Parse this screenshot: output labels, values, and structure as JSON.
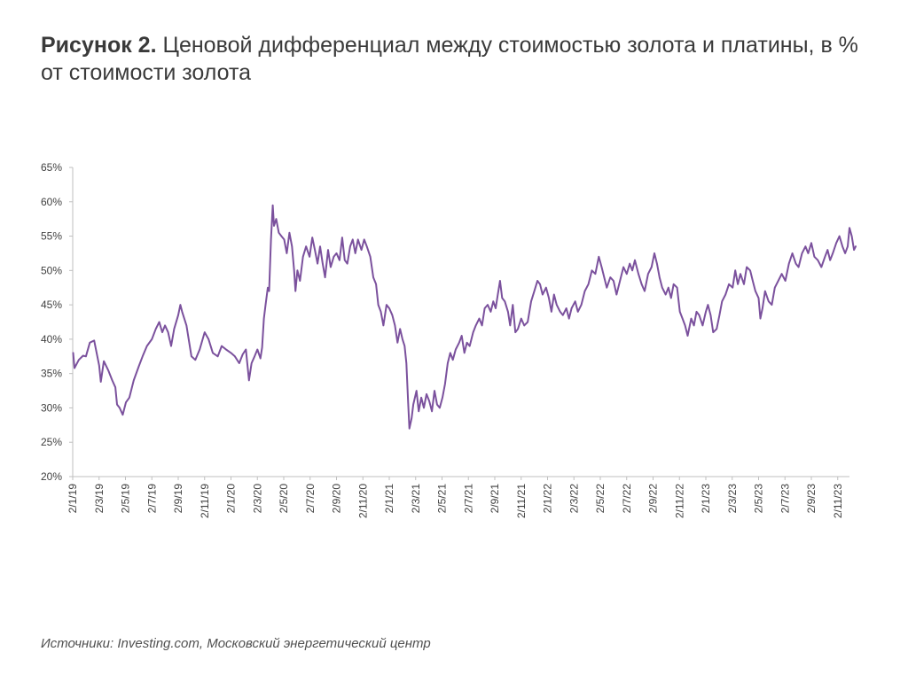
{
  "header": {
    "title_bold": "Рисунок 2.",
    "title_rest": " Ценовой дифференциал между стоимостью золота и платины, в % от стоимости золота"
  },
  "footer": {
    "source": "Источники: Investing.com, Московский энергетический центр"
  },
  "colors": {
    "line": "#7b519d",
    "axis": "#bfbfbf",
    "text": "#404040"
  },
  "chart_data": {
    "type": "line",
    "title": "Рисунок 2. Ценовой дифференциал между стоимостью золота и платины, в % от стоимости золота",
    "xlabel": "",
    "ylabel": "",
    "ylim": [
      20,
      65
    ],
    "grid": false,
    "y_ticks": [
      "20%",
      "25%",
      "30%",
      "35%",
      "40%",
      "45%",
      "50%",
      "55%",
      "60%",
      "65%"
    ],
    "x_ticks": [
      "2/1/19",
      "2/3/19",
      "2/5/19",
      "2/7/19",
      "2/9/19",
      "2/11/19",
      "2/1/20",
      "2/3/20",
      "2/5/20",
      "2/7/20",
      "2/9/20",
      "2/11/20",
      "2/1/21",
      "2/3/21",
      "2/5/21",
      "2/7/21",
      "2/9/21",
      "2/11/21",
      "2/1/22",
      "2/3/22",
      "2/5/22",
      "2/7/22",
      "2/9/22",
      "2/11/22",
      "2/1/23",
      "2/3/23",
      "2/5/23",
      "2/7/23",
      "2/9/23",
      "2/11/23"
    ],
    "series": [
      {
        "points": [
          [
            "2019-01-02",
            38.0
          ],
          [
            "2019-01-05",
            35.8
          ],
          [
            "2019-01-15",
            37.0
          ],
          [
            "2019-01-25",
            37.6
          ],
          [
            "2019-02-01",
            37.5
          ],
          [
            "2019-02-10",
            39.5
          ],
          [
            "2019-02-20",
            39.8
          ],
          [
            "2019-03-01",
            36.2
          ],
          [
            "2019-03-05",
            33.8
          ],
          [
            "2019-03-12",
            36.8
          ],
          [
            "2019-03-22",
            35.5
          ],
          [
            "2019-04-01",
            34.0
          ],
          [
            "2019-04-08",
            33.0
          ],
          [
            "2019-04-12",
            30.5
          ],
          [
            "2019-04-18",
            30.0
          ],
          [
            "2019-04-25",
            29.0
          ],
          [
            "2019-05-02",
            30.8
          ],
          [
            "2019-05-10",
            31.5
          ],
          [
            "2019-05-20",
            34.0
          ],
          [
            "2019-06-01",
            36.0
          ],
          [
            "2019-06-10",
            37.5
          ],
          [
            "2019-06-20",
            39.0
          ],
          [
            "2019-07-01",
            40.0
          ],
          [
            "2019-07-10",
            41.5
          ],
          [
            "2019-07-18",
            42.5
          ],
          [
            "2019-07-25",
            41.0
          ],
          [
            "2019-08-01",
            42.0
          ],
          [
            "2019-08-08",
            41.0
          ],
          [
            "2019-08-15",
            39.0
          ],
          [
            "2019-08-22",
            41.5
          ],
          [
            "2019-09-01",
            43.5
          ],
          [
            "2019-09-06",
            45.0
          ],
          [
            "2019-09-10",
            44.0
          ],
          [
            "2019-09-20",
            42.0
          ],
          [
            "2019-10-01",
            37.5
          ],
          [
            "2019-10-10",
            37.0
          ],
          [
            "2019-10-20",
            38.5
          ],
          [
            "2019-11-01",
            41.0
          ],
          [
            "2019-11-10",
            40.0
          ],
          [
            "2019-11-20",
            38.0
          ],
          [
            "2019-12-01",
            37.5
          ],
          [
            "2019-12-10",
            39.0
          ],
          [
            "2019-12-20",
            38.5
          ],
          [
            "2020-01-01",
            38.0
          ],
          [
            "2020-01-10",
            37.5
          ],
          [
            "2020-01-20",
            36.5
          ],
          [
            "2020-01-28",
            37.8
          ],
          [
            "2020-02-05",
            38.5
          ],
          [
            "2020-02-12",
            34.0
          ],
          [
            "2020-02-18",
            36.5
          ],
          [
            "2020-02-25",
            37.5
          ],
          [
            "2020-03-01",
            38.5
          ],
          [
            "2020-03-08",
            37.2
          ],
          [
            "2020-03-12",
            38.8
          ],
          [
            "2020-03-16",
            43.0
          ],
          [
            "2020-03-20",
            45.0
          ],
          [
            "2020-03-25",
            47.5
          ],
          [
            "2020-03-28",
            47.0
          ],
          [
            "2020-04-02",
            54.5
          ],
          [
            "2020-04-06",
            59.5
          ],
          [
            "2020-04-09",
            56.5
          ],
          [
            "2020-04-14",
            57.5
          ],
          [
            "2020-04-20",
            55.5
          ],
          [
            "2020-04-26",
            55.0
          ],
          [
            "2020-05-02",
            54.5
          ],
          [
            "2020-05-08",
            52.5
          ],
          [
            "2020-05-14",
            55.5
          ],
          [
            "2020-05-20",
            53.5
          ],
          [
            "2020-05-25",
            50.0
          ],
          [
            "2020-05-28",
            47.0
          ],
          [
            "2020-06-02",
            50.0
          ],
          [
            "2020-06-08",
            48.5
          ],
          [
            "2020-06-15",
            52.0
          ],
          [
            "2020-06-22",
            53.5
          ],
          [
            "2020-06-30",
            52.0
          ],
          [
            "2020-07-06",
            54.8
          ],
          [
            "2020-07-12",
            53.0
          ],
          [
            "2020-07-18",
            51.0
          ],
          [
            "2020-07-24",
            53.5
          ],
          [
            "2020-07-30",
            51.0
          ],
          [
            "2020-08-05",
            49.0
          ],
          [
            "2020-08-12",
            53.0
          ],
          [
            "2020-08-18",
            50.5
          ],
          [
            "2020-08-25",
            52.0
          ],
          [
            "2020-09-01",
            52.5
          ],
          [
            "2020-09-08",
            51.5
          ],
          [
            "2020-09-14",
            54.8
          ],
          [
            "2020-09-20",
            51.5
          ],
          [
            "2020-09-26",
            51.0
          ],
          [
            "2020-10-02",
            53.5
          ],
          [
            "2020-10-08",
            54.5
          ],
          [
            "2020-10-14",
            52.5
          ],
          [
            "2020-10-20",
            54.5
          ],
          [
            "2020-10-28",
            53.0
          ],
          [
            "2020-11-04",
            54.5
          ],
          [
            "2020-11-10",
            53.5
          ],
          [
            "2020-11-18",
            52.0
          ],
          [
            "2020-11-25",
            49.0
          ],
          [
            "2020-12-01",
            48.0
          ],
          [
            "2020-12-06",
            45.0
          ],
          [
            "2020-12-12",
            44.0
          ],
          [
            "2020-12-18",
            42.0
          ],
          [
            "2020-12-25",
            45.0
          ],
          [
            "2021-01-01",
            44.5
          ],
          [
            "2021-01-08",
            43.5
          ],
          [
            "2021-01-14",
            42.0
          ],
          [
            "2021-01-20",
            39.5
          ],
          [
            "2021-01-26",
            41.5
          ],
          [
            "2021-02-01",
            40.0
          ],
          [
            "2021-02-06",
            39.0
          ],
          [
            "2021-02-10",
            36.5
          ],
          [
            "2021-02-14",
            31.0
          ],
          [
            "2021-02-17",
            27.0
          ],
          [
            "2021-02-22",
            28.5
          ],
          [
            "2021-02-26",
            30.5
          ],
          [
            "2021-03-03",
            32.5
          ],
          [
            "2021-03-08",
            29.5
          ],
          [
            "2021-03-14",
            31.5
          ],
          [
            "2021-03-20",
            30.0
          ],
          [
            "2021-03-26",
            32.0
          ],
          [
            "2021-04-02",
            31.0
          ],
          [
            "2021-04-08",
            29.5
          ],
          [
            "2021-04-14",
            32.5
          ],
          [
            "2021-04-20",
            30.5
          ],
          [
            "2021-04-26",
            30.0
          ],
          [
            "2021-05-02",
            31.5
          ],
          [
            "2021-05-08",
            33.5
          ],
          [
            "2021-05-14",
            36.5
          ],
          [
            "2021-05-20",
            38.0
          ],
          [
            "2021-05-26",
            37.0
          ],
          [
            "2021-06-02",
            38.5
          ],
          [
            "2021-06-10",
            39.5
          ],
          [
            "2021-06-16",
            40.5
          ],
          [
            "2021-06-22",
            38.0
          ],
          [
            "2021-06-28",
            39.5
          ],
          [
            "2021-07-04",
            39.0
          ],
          [
            "2021-07-12",
            41.0
          ],
          [
            "2021-07-18",
            42.0
          ],
          [
            "2021-07-26",
            43.0
          ],
          [
            "2021-08-02",
            42.0
          ],
          [
            "2021-08-08",
            44.5
          ],
          [
            "2021-08-15",
            45.0
          ],
          [
            "2021-08-22",
            44.0
          ],
          [
            "2021-08-28",
            45.5
          ],
          [
            "2021-09-03",
            44.5
          ],
          [
            "2021-09-08",
            46.5
          ],
          [
            "2021-09-13",
            48.5
          ],
          [
            "2021-09-18",
            46.0
          ],
          [
            "2021-09-24",
            45.5
          ],
          [
            "2021-10-01",
            44.0
          ],
          [
            "2021-10-06",
            42.0
          ],
          [
            "2021-10-12",
            45.0
          ],
          [
            "2021-10-18",
            41.0
          ],
          [
            "2021-10-24",
            41.5
          ],
          [
            "2021-11-01",
            43.0
          ],
          [
            "2021-11-08",
            42.0
          ],
          [
            "2021-11-16",
            42.5
          ],
          [
            "2021-11-24",
            45.5
          ],
          [
            "2021-12-01",
            47.0
          ],
          [
            "2021-12-08",
            48.5
          ],
          [
            "2021-12-14",
            48.0
          ],
          [
            "2021-12-20",
            46.5
          ],
          [
            "2021-12-28",
            47.5
          ],
          [
            "2022-01-04",
            46.0
          ],
          [
            "2022-01-10",
            44.0
          ],
          [
            "2022-01-16",
            46.5
          ],
          [
            "2022-01-22",
            45.0
          ],
          [
            "2022-01-30",
            44.0
          ],
          [
            "2022-02-06",
            43.5
          ],
          [
            "2022-02-14",
            44.5
          ],
          [
            "2022-02-20",
            43.0
          ],
          [
            "2022-02-26",
            44.5
          ],
          [
            "2022-03-04",
            45.5
          ],
          [
            "2022-03-10",
            44.0
          ],
          [
            "2022-03-18",
            45.0
          ],
          [
            "2022-03-26",
            47.0
          ],
          [
            "2022-04-04",
            48.0
          ],
          [
            "2022-04-12",
            50.0
          ],
          [
            "2022-04-20",
            49.5
          ],
          [
            "2022-04-28",
            52.0
          ],
          [
            "2022-05-04",
            50.5
          ],
          [
            "2022-05-10",
            49.0
          ],
          [
            "2022-05-16",
            47.5
          ],
          [
            "2022-05-24",
            49.0
          ],
          [
            "2022-06-01",
            48.5
          ],
          [
            "2022-06-08",
            46.5
          ],
          [
            "2022-06-16",
            48.5
          ],
          [
            "2022-06-24",
            50.5
          ],
          [
            "2022-07-01",
            49.5
          ],
          [
            "2022-07-08",
            51.0
          ],
          [
            "2022-07-14",
            50.0
          ],
          [
            "2022-07-20",
            51.5
          ],
          [
            "2022-07-28",
            49.5
          ],
          [
            "2022-08-05",
            48.0
          ],
          [
            "2022-08-12",
            47.0
          ],
          [
            "2022-08-20",
            49.5
          ],
          [
            "2022-08-28",
            50.5
          ],
          [
            "2022-09-04",
            52.5
          ],
          [
            "2022-09-10",
            51.0
          ],
          [
            "2022-09-16",
            49.0
          ],
          [
            "2022-09-22",
            47.5
          ],
          [
            "2022-09-30",
            46.5
          ],
          [
            "2022-10-06",
            47.5
          ],
          [
            "2022-10-12",
            46.0
          ],
          [
            "2022-10-18",
            48.0
          ],
          [
            "2022-10-26",
            47.5
          ],
          [
            "2022-11-02",
            44.0
          ],
          [
            "2022-11-08",
            43.0
          ],
          [
            "2022-11-14",
            42.0
          ],
          [
            "2022-11-20",
            40.5
          ],
          [
            "2022-11-28",
            43.0
          ],
          [
            "2022-12-04",
            42.0
          ],
          [
            "2022-12-10",
            44.0
          ],
          [
            "2022-12-16",
            43.5
          ],
          [
            "2022-12-24",
            42.0
          ],
          [
            "2023-01-01",
            44.0
          ],
          [
            "2023-01-06",
            45.0
          ],
          [
            "2023-01-12",
            43.5
          ],
          [
            "2023-01-18",
            41.0
          ],
          [
            "2023-01-26",
            41.5
          ],
          [
            "2023-02-02",
            43.5
          ],
          [
            "2023-02-08",
            45.5
          ],
          [
            "2023-02-16",
            46.5
          ],
          [
            "2023-02-24",
            48.0
          ],
          [
            "2023-03-02",
            47.5
          ],
          [
            "2023-03-08",
            50.0
          ],
          [
            "2023-03-14",
            48.0
          ],
          [
            "2023-03-20",
            49.5
          ],
          [
            "2023-03-28",
            48.0
          ],
          [
            "2023-04-04",
            50.5
          ],
          [
            "2023-04-12",
            50.0
          ],
          [
            "2023-04-18",
            48.5
          ],
          [
            "2023-04-24",
            47.0
          ],
          [
            "2023-05-01",
            46.0
          ],
          [
            "2023-05-05",
            43.0
          ],
          [
            "2023-05-10",
            44.5
          ],
          [
            "2023-05-16",
            47.0
          ],
          [
            "2023-05-24",
            45.5
          ],
          [
            "2023-06-01",
            45.0
          ],
          [
            "2023-06-08",
            47.5
          ],
          [
            "2023-06-16",
            48.5
          ],
          [
            "2023-06-24",
            49.5
          ],
          [
            "2023-07-02",
            48.5
          ],
          [
            "2023-07-10",
            51.0
          ],
          [
            "2023-07-18",
            52.5
          ],
          [
            "2023-07-26",
            51.0
          ],
          [
            "2023-08-02",
            50.5
          ],
          [
            "2023-08-10",
            52.5
          ],
          [
            "2023-08-18",
            53.5
          ],
          [
            "2023-08-24",
            52.5
          ],
          [
            "2023-09-01",
            54.0
          ],
          [
            "2023-09-08",
            52.0
          ],
          [
            "2023-09-16",
            51.5
          ],
          [
            "2023-09-24",
            50.5
          ],
          [
            "2023-10-02",
            52.0
          ],
          [
            "2023-10-08",
            53.0
          ],
          [
            "2023-10-14",
            51.5
          ],
          [
            "2023-10-20",
            52.5
          ],
          [
            "2023-10-28",
            54.0
          ],
          [
            "2023-11-05",
            55.0
          ],
          [
            "2023-11-12",
            53.5
          ],
          [
            "2023-11-18",
            52.5
          ],
          [
            "2023-11-24",
            53.5
          ],
          [
            "2023-11-28",
            56.2
          ],
          [
            "2023-12-03",
            55.0
          ],
          [
            "2023-12-08",
            53.0
          ],
          [
            "2023-12-12",
            53.5
          ]
        ]
      }
    ]
  }
}
